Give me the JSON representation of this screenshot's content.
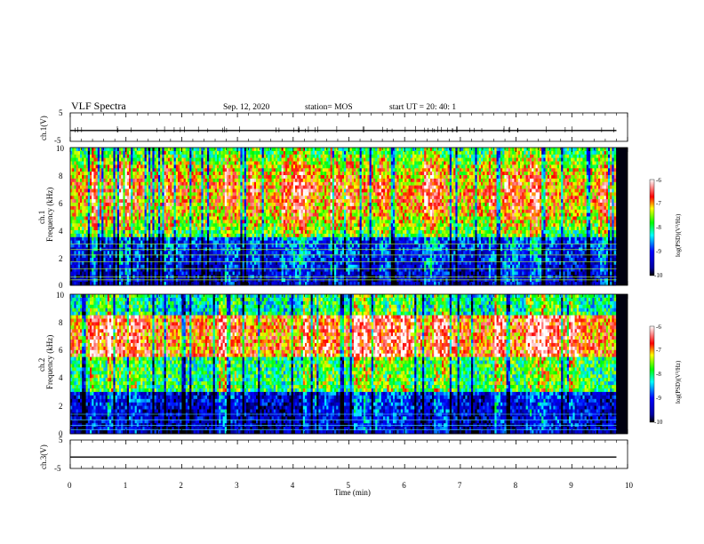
{
  "header": {
    "title": "VLF Spectra",
    "date": "Sep. 12, 2020",
    "station": "station= MOS",
    "start": "start  UT  =   20: 40: 1"
  },
  "chart_data": [
    {
      "type": "line",
      "name": "ch1-voltage",
      "ylabel": "ch.1(V)",
      "ylim": [
        -5,
        5
      ],
      "yticks": [
        "5",
        "-5"
      ],
      "series": [
        {
          "x": [
            0,
            9.8
          ],
          "y": [
            -1.2,
            -1.2
          ]
        }
      ]
    },
    {
      "type": "heatmap",
      "name": "ch1-spectrogram",
      "ylabel": "ch.1",
      "ylabel2": "Frequency (kHz)",
      "ylim": [
        0,
        10
      ],
      "yticks": [
        "0",
        "2",
        "4",
        "6",
        "8",
        "10"
      ],
      "xlim": [
        0,
        9.8
      ]
    },
    {
      "type": "heatmap",
      "name": "ch2-spectrogram",
      "ylabel": "ch.2",
      "ylabel2": "Frequency (kHz)",
      "ylim": [
        0,
        10
      ],
      "yticks": [
        "0",
        "2",
        "4",
        "6",
        "8",
        "10"
      ],
      "xlim": [
        0,
        9.8
      ]
    },
    {
      "type": "line",
      "name": "ch3-voltage",
      "ylabel": "ch.3(V)",
      "ylim": [
        -5,
        5
      ],
      "yticks": [
        "5",
        "-5"
      ],
      "series": [
        {
          "x": [
            0,
            9.8
          ],
          "y": [
            -1.0,
            -1.0
          ]
        }
      ]
    }
  ],
  "xaxis": {
    "label": "Time (min)",
    "ticks": [
      "0",
      "1",
      "2",
      "3",
      "4",
      "5",
      "6",
      "7",
      "8",
      "9",
      "10"
    ],
    "xlim": [
      0,
      10
    ]
  },
  "colorbar": {
    "label": "log(PSD)(V²/Hz)",
    "ticks": [
      "-6",
      "-7",
      "-8",
      "-9",
      "-10"
    ],
    "range": [
      -10,
      -6
    ],
    "colors": [
      "#000000",
      "#0000ff",
      "#00ffff",
      "#00ff00",
      "#ffff00",
      "#ff0000",
      "#ffffff"
    ]
  }
}
